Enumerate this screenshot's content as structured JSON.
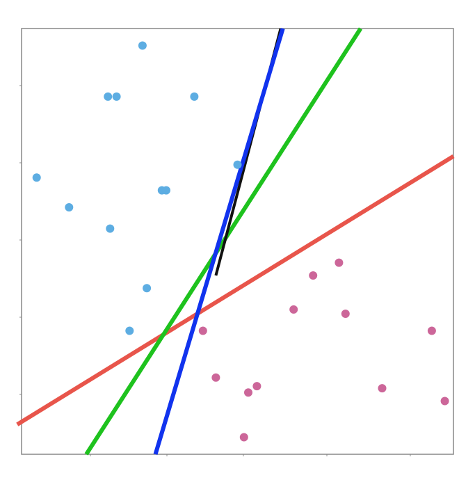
{
  "chart_data": {
    "type": "scatter",
    "title": "",
    "xlabel": "",
    "ylabel": "",
    "xlim": [
      0,
      10
    ],
    "ylim": [
      0,
      10
    ],
    "grid": false,
    "x_tick_labels": [],
    "y_tick_labels": [],
    "series": [
      {
        "color": "#5dade2",
        "points": [
          [
            2.8,
            9.6
          ],
          [
            2.0,
            8.4
          ],
          [
            2.2,
            8.4
          ],
          [
            4.0,
            8.4
          ],
          [
            5.0,
            6.8
          ],
          [
            0.35,
            6.5
          ],
          [
            3.25,
            6.2
          ],
          [
            3.35,
            6.2
          ],
          [
            1.1,
            5.8
          ],
          [
            2.05,
            5.3
          ],
          [
            2.9,
            3.9
          ],
          [
            2.5,
            2.9
          ]
        ]
      },
      {
        "color": "#cc6699",
        "points": [
          [
            4.2,
            2.9
          ],
          [
            4.5,
            1.8
          ],
          [
            5.45,
            1.6
          ],
          [
            5.25,
            1.45
          ],
          [
            5.15,
            0.4
          ],
          [
            6.3,
            3.4
          ],
          [
            6.75,
            4.2
          ],
          [
            7.35,
            4.5
          ],
          [
            7.5,
            3.3
          ],
          [
            8.35,
            1.55
          ],
          [
            9.5,
            2.9
          ],
          [
            9.8,
            1.25
          ]
        ]
      }
    ],
    "lines": [
      {
        "color": "#e8554b",
        "p1": [
          -0.1,
          0.7
        ],
        "p2": [
          10.0,
          7.0
        ]
      },
      {
        "color": "#1ec21e",
        "p1": [
          1.5,
          0.0
        ],
        "p2": [
          7.85,
          10.0
        ]
      },
      {
        "color": "#1133ee",
        "p1": [
          3.1,
          0.0
        ],
        "p2": [
          6.05,
          10.0
        ]
      },
      {
        "color": "#111111",
        "p1": [
          4.5,
          4.2
        ],
        "p2": [
          6.0,
          10.0
        ]
      }
    ]
  }
}
